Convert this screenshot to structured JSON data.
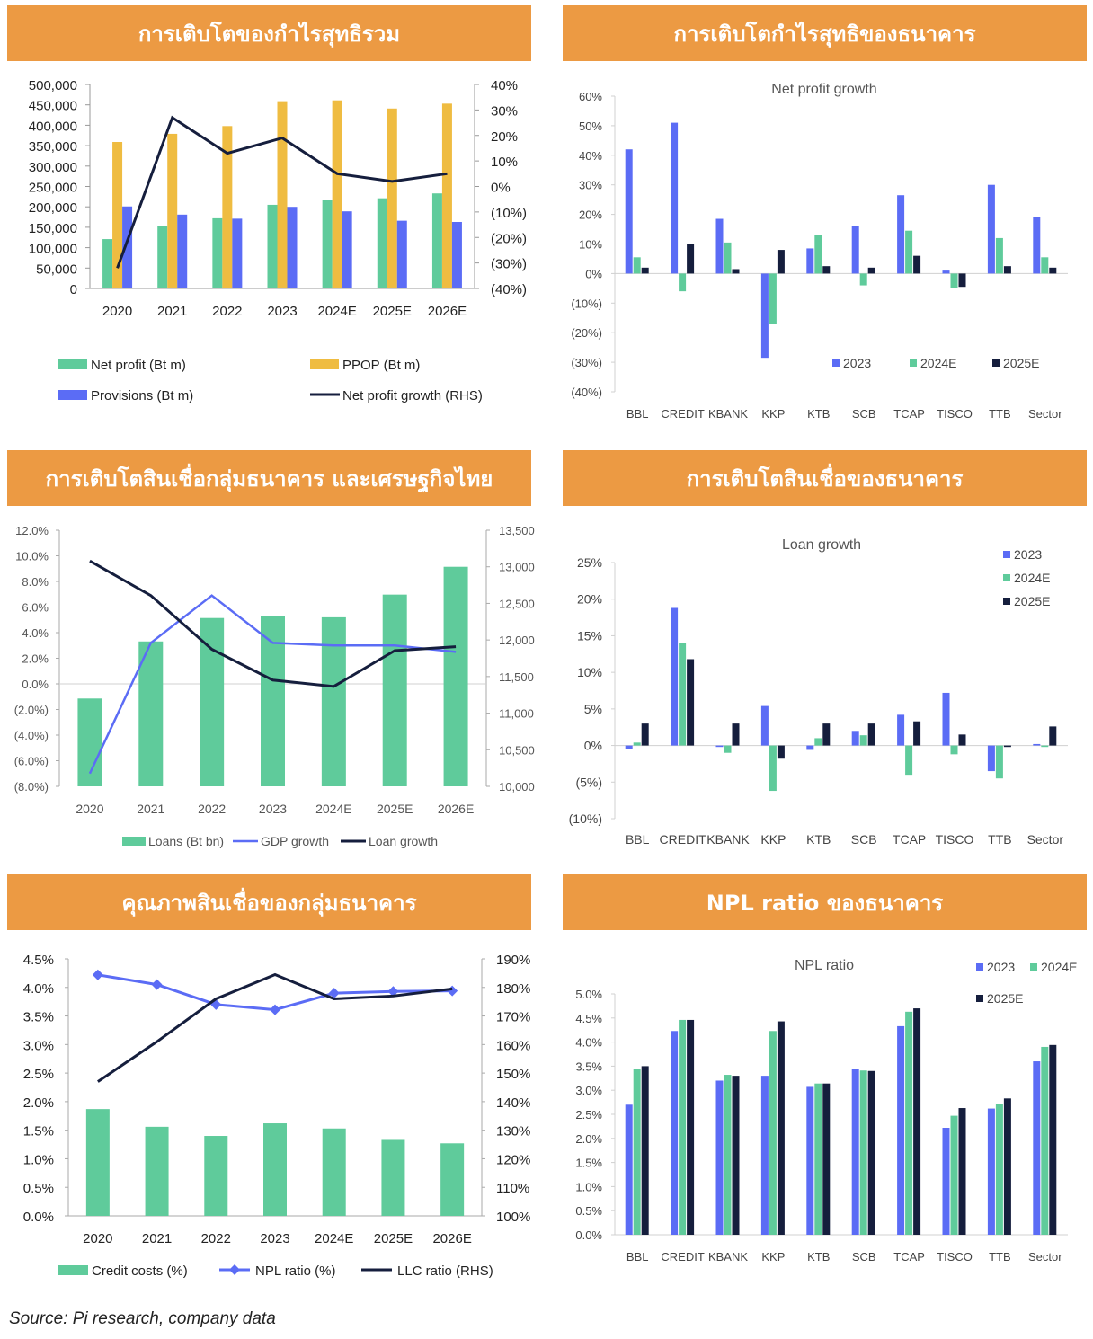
{
  "headers": {
    "p1": "การเติบโตของกำไรสุทธิรวม",
    "p2": "การเติบโตกำไรสุทธิของธนาคาร",
    "p3": "การเติบโตสินเชื่อกลุ่มธนาคาร และเศรษฐกิจไทย",
    "p4": "การเติบโตสินเชื่อของธนาคาร",
    "p5": "คุณภาพสินเชื่อของกลุ่มธนาคาร",
    "p6": "NPL ratio ของธนาคาร"
  },
  "source": "Source: Pi research, company data",
  "colors": {
    "green": "#5FCB9B",
    "yellow": "#EFBC41",
    "blue": "#5B6CF5",
    "navy": "#151E3D",
    "orange": "#EC9A43"
  },
  "chart_data": [
    {
      "id": "p1",
      "type": "bar",
      "categories": [
        "2020",
        "2021",
        "2022",
        "2023",
        "2024E",
        "2025E",
        "2026E"
      ],
      "series": [
        {
          "name": "Net profit (Bt m)",
          "axis": "left",
          "values": [
            121000,
            152000,
            172000,
            205000,
            217000,
            221000,
            233000
          ]
        },
        {
          "name": "PPOP (Bt m)",
          "axis": "left",
          "values": [
            359000,
            379000,
            398000,
            459000,
            461000,
            441000,
            453000
          ]
        },
        {
          "name": "Provisions (Bt m)",
          "axis": "left",
          "values": [
            201000,
            181000,
            171000,
            200000,
            189000,
            166000,
            163000
          ]
        },
        {
          "name": "Net profit growth (RHS)",
          "type": "line",
          "axis": "right",
          "values": [
            -32,
            27,
            13,
            19,
            5,
            2,
            5
          ]
        }
      ],
      "yticks_left": [
        "0",
        "50,000",
        "100,000",
        "150,000",
        "200,000",
        "250,000",
        "300,000",
        "350,000",
        "400,000",
        "450,000",
        "500,000"
      ],
      "yticks_right": [
        "(40%)",
        "(30%)",
        "(20%)",
        "(10%)",
        "0%",
        "10%",
        "20%",
        "30%",
        "40%"
      ],
      "ylim": [
        0,
        500000
      ],
      "ylim_right": [
        -40,
        40
      ]
    },
    {
      "id": "p2",
      "type": "bar",
      "title": "Net profit growth",
      "categories": [
        "BBL",
        "CREDIT",
        "KBANK",
        "KKP",
        "KTB",
        "SCB",
        "TCAP",
        "TISCO",
        "TTB",
        "Sector"
      ],
      "series": [
        {
          "name": "2023",
          "values": [
            42,
            51,
            18.5,
            -28.5,
            8.5,
            16,
            26.5,
            1,
            30,
            19
          ]
        },
        {
          "name": "2024E",
          "values": [
            5.5,
            -6,
            10.5,
            -17,
            13,
            -4,
            14.5,
            -5,
            12,
            5.5
          ]
        },
        {
          "name": "2025E",
          "values": [
            2,
            10,
            1.5,
            8,
            2.5,
            2,
            6,
            -4.5,
            2.5,
            2
          ]
        }
      ],
      "yticks": [
        "(40%)",
        "(30%)",
        "(20%)",
        "(10%)",
        "0%",
        "10%",
        "20%",
        "30%",
        "40%",
        "50%",
        "60%"
      ],
      "ylim": [
        -40,
        60
      ],
      "legend": "bottom-right"
    },
    {
      "id": "p3",
      "type": "bar",
      "categories": [
        "2020",
        "2021",
        "2022",
        "2023",
        "2024E",
        "2025E",
        "2026E"
      ],
      "series": [
        {
          "name": "Loans (Bt bn)",
          "axis": "right",
          "values": [
            11200,
            11980,
            12300,
            12330,
            12310,
            12620,
            13000
          ]
        },
        {
          "name": "GDP growth",
          "type": "line",
          "axis": "left",
          "values": [
            -7.0,
            3.2,
            6.9,
            3.2,
            3.0,
            3.0,
            2.5
          ]
        },
        {
          "name": "Loan growth",
          "type": "line",
          "axis": "left",
          "values": [
            9.6,
            6.9,
            2.7,
            0.3,
            -0.2,
            2.6,
            2.9
          ]
        }
      ],
      "yticks_left": [
        "(8.0%)",
        "(6.0%)",
        "(4.0%)",
        "(2.0%)",
        "0.0%",
        "2.0%",
        "4.0%",
        "6.0%",
        "8.0%",
        "10.0%",
        "12.0%"
      ],
      "yticks_right": [
        "10,000",
        "10,500",
        "11,000",
        "11,500",
        "12,000",
        "12,500",
        "13,000",
        "13,500"
      ],
      "ylim": [
        -8,
        12
      ],
      "ylim_right": [
        10000,
        13500
      ]
    },
    {
      "id": "p4",
      "type": "bar",
      "title": "Loan growth",
      "categories": [
        "BBL",
        "CREDIT",
        "KBANK",
        "KKP",
        "KTB",
        "SCB",
        "TCAP",
        "TISCO",
        "TTB",
        "Sector"
      ],
      "series": [
        {
          "name": "2023",
          "values": [
            -0.5,
            18.8,
            -0.2,
            5.4,
            -0.6,
            2.0,
            4.2,
            7.2,
            -3.5,
            0.2
          ]
        },
        {
          "name": "2024E",
          "values": [
            0.4,
            14.0,
            -1.0,
            -6.2,
            1.0,
            1.4,
            -4.0,
            -1.2,
            -4.5,
            -0.2
          ]
        },
        {
          "name": "2025E",
          "values": [
            3.0,
            11.8,
            3.0,
            -1.8,
            3.0,
            3.0,
            3.3,
            1.5,
            -0.2,
            2.6
          ]
        }
      ],
      "yticks": [
        "(10%)",
        "(5%)",
        "0%",
        "5%",
        "10%",
        "15%",
        "20%",
        "25%"
      ],
      "ylim": [
        -10,
        25
      ],
      "legend": "top-right"
    },
    {
      "id": "p5",
      "type": "bar",
      "categories": [
        "2020",
        "2021",
        "2022",
        "2023",
        "2024E",
        "2025E",
        "2026E"
      ],
      "series": [
        {
          "name": "Credit costs (%)",
          "axis": "left",
          "values": [
            1.87,
            1.56,
            1.4,
            1.62,
            1.53,
            1.33,
            1.27
          ]
        },
        {
          "name": "NPL ratio (%)",
          "type": "line",
          "axis": "left",
          "values": [
            4.22,
            4.05,
            3.7,
            3.61,
            3.9,
            3.93,
            3.94
          ]
        },
        {
          "name": "LLC ratio (RHS)",
          "type": "line",
          "axis": "right",
          "values": [
            147,
            161,
            176,
            184.5,
            176,
            177,
            179.5
          ]
        }
      ],
      "yticks_left": [
        "0.0%",
        "0.5%",
        "1.0%",
        "1.5%",
        "2.0%",
        "2.5%",
        "3.0%",
        "3.5%",
        "4.0%",
        "4.5%"
      ],
      "yticks_right": [
        "100%",
        "110%",
        "120%",
        "130%",
        "140%",
        "150%",
        "160%",
        "170%",
        "180%",
        "190%"
      ],
      "ylim": [
        0,
        4.5
      ],
      "ylim_right": [
        100,
        190
      ]
    },
    {
      "id": "p6",
      "type": "bar",
      "title": "NPL ratio",
      "categories": [
        "BBL",
        "CREDIT",
        "KBANK",
        "KKP",
        "KTB",
        "SCB",
        "TCAP",
        "TISCO",
        "TTB",
        "Sector"
      ],
      "series": [
        {
          "name": "2023",
          "values": [
            2.7,
            4.23,
            3.2,
            3.3,
            3.07,
            3.44,
            4.33,
            2.22,
            2.62,
            3.6
          ]
        },
        {
          "name": "2024E",
          "values": [
            3.44,
            4.46,
            3.32,
            4.23,
            3.14,
            3.41,
            4.63,
            2.47,
            2.72,
            3.9
          ]
        },
        {
          "name": "2025E",
          "values": [
            3.5,
            4.46,
            3.3,
            4.43,
            3.14,
            3.4,
            4.7,
            2.63,
            2.83,
            3.94
          ]
        }
      ],
      "yticks": [
        "0.0%",
        "0.5%",
        "1.0%",
        "1.5%",
        "2.0%",
        "2.5%",
        "3.0%",
        "3.5%",
        "4.0%",
        "4.5%",
        "5.0%"
      ],
      "ylim": [
        0,
        5.0
      ],
      "legend": "top-right"
    }
  ]
}
